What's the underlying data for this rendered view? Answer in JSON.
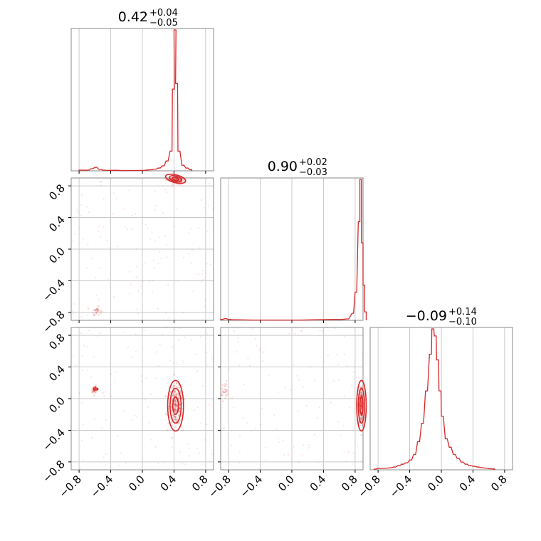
{
  "colors": {
    "hist": "#d62728",
    "grid": "#c8c8c8",
    "frame": "#888888"
  },
  "chart_data": {
    "type": "corner",
    "parameters": 3,
    "axis_range": [
      -0.9,
      0.9
    ],
    "tick_values": [
      -0.8,
      -0.4,
      0.0,
      0.4,
      0.8
    ],
    "tick_labels": [
      "−0.8",
      "−0.4",
      "0.0",
      "0.4",
      "0.8"
    ],
    "grid": true,
    "titles": [
      {
        "value": "0.42",
        "plus": "+0.04",
        "minus": "−0.05"
      },
      {
        "value": "0.90",
        "plus": "+0.02",
        "minus": "−0.03"
      },
      {
        "value": "−0.09",
        "plus": "+0.14",
        "minus": "−0.10"
      }
    ],
    "histograms": [
      {
        "param": 0,
        "bins": [
          [
            -0.8,
            0.005
          ],
          [
            -0.75,
            0.005
          ],
          [
            -0.7,
            0.005
          ],
          [
            -0.65,
            0.015
          ],
          [
            -0.6,
            0.025
          ],
          [
            -0.55,
            0.01
          ],
          [
            -0.5,
            0.005
          ],
          [
            -0.45,
            0.003
          ],
          [
            -0.35,
            0.004
          ],
          [
            -0.25,
            0.002
          ],
          [
            0.0,
            0.003
          ],
          [
            0.05,
            0.006
          ],
          [
            0.1,
            0.008
          ],
          [
            0.15,
            0.012
          ],
          [
            0.2,
            0.02
          ],
          [
            0.25,
            0.035
          ],
          [
            0.3,
            0.07
          ],
          [
            0.35,
            0.14
          ],
          [
            0.38,
            0.58
          ],
          [
            0.4,
            1.0
          ],
          [
            0.42,
            0.62
          ],
          [
            0.45,
            0.14
          ],
          [
            0.5,
            0.04
          ],
          [
            0.55,
            0.02
          ],
          [
            0.6,
            0.008
          ]
        ],
        "bin_width": 0.025
      },
      {
        "param": 1,
        "bins": [
          [
            -0.9,
            0.006
          ],
          [
            -0.85,
            0.012
          ],
          [
            -0.8,
            0.006
          ],
          [
            -0.75,
            0.004
          ],
          [
            -0.5,
            0.002
          ],
          [
            0.1,
            0.002
          ],
          [
            0.3,
            0.004
          ],
          [
            0.5,
            0.006
          ],
          [
            0.6,
            0.006
          ],
          [
            0.7,
            0.01
          ],
          [
            0.76,
            0.05
          ],
          [
            0.8,
            0.2
          ],
          [
            0.84,
            0.7
          ],
          [
            0.86,
            1.0
          ],
          [
            0.88,
            0.55
          ],
          [
            0.9,
            0.25
          ],
          [
            0.92,
            0.06
          ]
        ],
        "bin_width": 0.02
      },
      {
        "param": 2,
        "bins": [
          [
            -0.85,
            0.005
          ],
          [
            -0.8,
            0.01
          ],
          [
            -0.75,
            0.01
          ],
          [
            -0.7,
            0.012
          ],
          [
            -0.65,
            0.015
          ],
          [
            -0.6,
            0.02
          ],
          [
            -0.55,
            0.03
          ],
          [
            -0.5,
            0.04
          ],
          [
            -0.45,
            0.05
          ],
          [
            -0.4,
            0.07
          ],
          [
            -0.35,
            0.11
          ],
          [
            -0.3,
            0.2
          ],
          [
            -0.25,
            0.33
          ],
          [
            -0.2,
            0.56
          ],
          [
            -0.15,
            0.82
          ],
          [
            -0.12,
            1.0
          ],
          [
            -0.09,
            0.95
          ],
          [
            -0.06,
            0.78
          ],
          [
            -0.03,
            0.56
          ],
          [
            0.0,
            0.38
          ],
          [
            0.05,
            0.22
          ],
          [
            0.1,
            0.16
          ],
          [
            0.15,
            0.11
          ],
          [
            0.2,
            0.08
          ],
          [
            0.25,
            0.055
          ],
          [
            0.3,
            0.04
          ],
          [
            0.35,
            0.03
          ],
          [
            0.4,
            0.025
          ],
          [
            0.45,
            0.02
          ],
          [
            0.5,
            0.015
          ],
          [
            0.55,
            0.012
          ],
          [
            0.6,
            0.008
          ],
          [
            0.65,
            0.006
          ]
        ],
        "bin_width": 0.025
      }
    ],
    "scatter_panels": [
      {
        "x_param": 0,
        "y_param": 1,
        "clusters": [
          {
            "cx": 0.42,
            "cy": 0.89,
            "sx": 0.06,
            "sy": 0.03,
            "angle": -0.25,
            "n": 170
          },
          {
            "cx": -0.58,
            "cy": -0.78,
            "sx": 0.03,
            "sy": 0.025,
            "angle": 0,
            "n": 25
          }
        ],
        "background_points": 120,
        "contours": [
          {
            "cx": 0.42,
            "cy": 0.89,
            "rx": [
              0.13,
              0.08,
              0.04
            ],
            "ry": [
              0.05,
              0.035,
              0.02
            ],
            "angle": -0.25
          }
        ]
      },
      {
        "x_param": 0,
        "y_param": 2,
        "clusters": [
          {
            "cx": 0.42,
            "cy": -0.09,
            "sx": 0.045,
            "sy": 0.12,
            "angle": 0,
            "n": 230
          },
          {
            "cx": -0.6,
            "cy": 0.12,
            "sx": 0.02,
            "sy": 0.02,
            "angle": 0,
            "n": 40
          }
        ],
        "background_points": 110,
        "contours": [
          {
            "cx": 0.42,
            "cy": -0.09,
            "rx": [
              0.1,
              0.07,
              0.035
            ],
            "ry": [
              0.32,
              0.22,
              0.11
            ],
            "angle": 0
          },
          {
            "cx": -0.59,
            "cy": 0.12,
            "rx": [
              0.03
            ],
            "ry": [
              0.012
            ],
            "angle": 0
          }
        ]
      },
      {
        "x_param": 1,
        "y_param": 2,
        "clusters": [
          {
            "cx": 0.88,
            "cy": -0.09,
            "sx": 0.02,
            "sy": 0.13,
            "angle": 0,
            "n": 230
          },
          {
            "cx": -0.86,
            "cy": 0.1,
            "sx": 0.025,
            "sy": 0.06,
            "angle": 0,
            "n": 30
          }
        ],
        "background_points": 100,
        "contours": [
          {
            "cx": 0.88,
            "cy": -0.09,
            "rx": [
              0.06,
              0.04,
              0.02
            ],
            "ry": [
              0.32,
              0.22,
              0.11
            ],
            "angle": 0
          }
        ]
      }
    ]
  }
}
